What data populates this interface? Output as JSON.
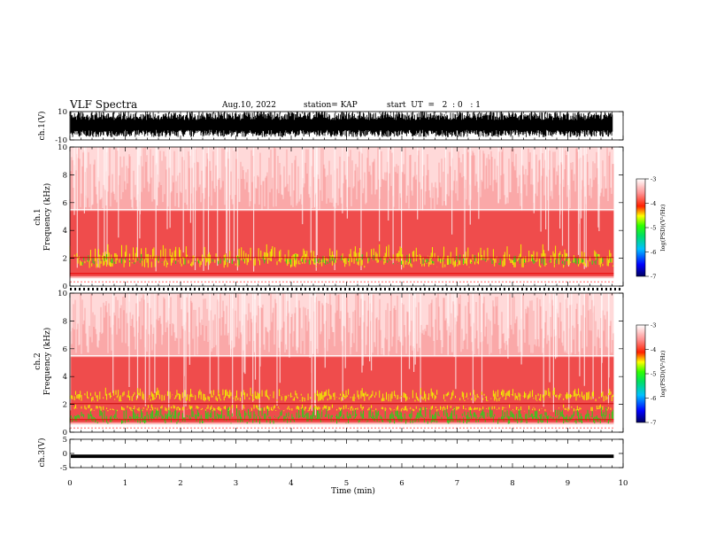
{
  "header": {
    "title": "VLF Spectra",
    "date": "Aug.10, 2022",
    "station": "station= KAP",
    "start": "start  UT  =   2  : 0   : 1"
  },
  "colors": {
    "noise": "#e60000",
    "yellow": "#f0f000",
    "green": "#2ad11a",
    "waveform": "#000000"
  },
  "chart_data": [
    {
      "type": "line",
      "id": "ch1-waveform",
      "ylabel": "ch.1(V)",
      "ylim": [
        -10,
        10
      ],
      "ytick_labels": [
        "10",
        "-10"
      ],
      "xlim": [
        0,
        10
      ],
      "note": "dense saturated waveform spanning roughly -8 to +10 V"
    },
    {
      "type": "heatmap",
      "id": "ch1-spectrogram",
      "ylabel": "ch.1 Frequency (kHz)",
      "ylim": [
        0,
        10
      ],
      "yticks": [
        0,
        2,
        4,
        6,
        8,
        10
      ],
      "xlim": [
        0,
        9.83
      ],
      "band_green_yellow_khz": [
        1.3,
        3.0
      ],
      "colorbar": {
        "label": "log(PSD)(V²/Hz)",
        "range": [
          -7,
          -3
        ],
        "ticks": [
          "-3",
          "-4",
          "-5",
          "-6",
          "-7"
        ]
      }
    },
    {
      "type": "heatmap",
      "id": "ch2-spectrogram",
      "ylabel": "ch.2 Frequency (kHz)",
      "ylim": [
        0,
        10
      ],
      "yticks": [
        0,
        2,
        4,
        6,
        8,
        10
      ],
      "xlim": [
        0,
        9.83
      ],
      "band_green_khz": [
        0.6,
        1.8
      ],
      "band_yellow_khz": [
        2.2,
        3.2
      ],
      "colorbar": {
        "label": "log(PSD)(V²/Hz)",
        "range": [
          -7,
          -3
        ],
        "ticks": [
          "-3",
          "-4",
          "-5",
          "-6",
          "-7"
        ]
      }
    },
    {
      "type": "line",
      "id": "ch3-waveform",
      "ylabel": "ch.3(V)",
      "ylim": [
        -5,
        5
      ],
      "ytick_labels": [
        "5",
        "0",
        "-5"
      ],
      "xlim": [
        0,
        9.83
      ],
      "note": "flat signal near -1 V"
    }
  ],
  "xaxis": {
    "label": "Time (min)",
    "range": [
      0,
      10
    ],
    "ticks": [
      "0",
      "1",
      "2",
      "3",
      "4",
      "5",
      "6",
      "7",
      "8",
      "9",
      "10"
    ]
  },
  "labels": {
    "ch1_wave_label": "ch.1(V)",
    "ch1_freq_label": "ch.1",
    "ch2_freq_label": "ch.2",
    "freq_label": "Frequency  (kHz)",
    "ch3_wave_label": "ch.3(V)",
    "psd_label": "log(PSD)(V²/Hz)"
  }
}
